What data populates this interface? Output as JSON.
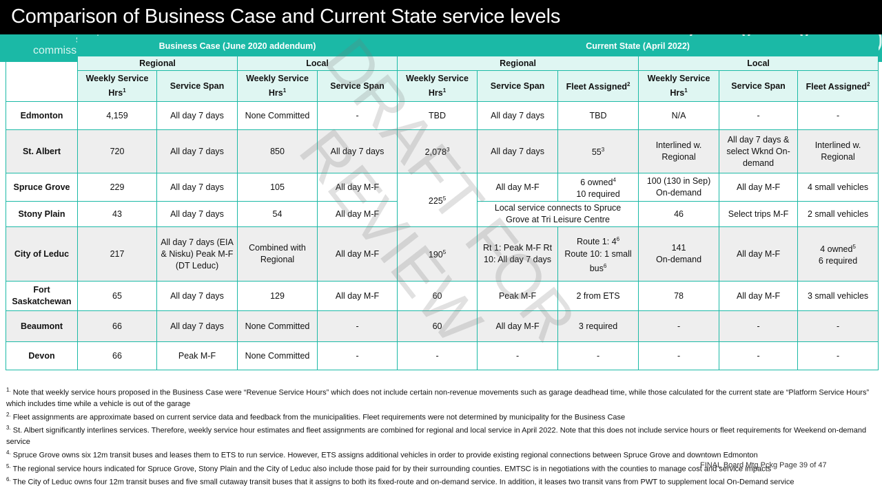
{
  "title": "Comparison of Business Case and Current State service levels",
  "logo": {
    "line1": "services",
    "line2": "commission"
  },
  "colors": {
    "accent": "#1bb9a6",
    "header_bg": "#000000",
    "light": "#dff6f2",
    "alt_row": "#eeeeee"
  },
  "groups": {
    "business_case": "Business Case (June 2020 addendum)",
    "current_state": "Current State (April 2022)"
  },
  "subgroups": {
    "regional": "Regional",
    "local": "Local"
  },
  "columns": {
    "weekly_hours": "Weekly Service Hrs",
    "span": "Service Span",
    "fleet": "Fleet Assigned",
    "sup1": "1",
    "sup2": "2"
  },
  "rows": [
    {
      "place": "Edmonton",
      "bc_reg_hrs": "4,159",
      "bc_reg_span": "All day 7 days",
      "bc_loc_hrs": "None Committed",
      "bc_loc_span": "-",
      "cs_reg_hrs": "TBD",
      "cs_reg_span": "All day 7 days",
      "cs_reg_fleet": "TBD",
      "cs_loc_hrs": "N/A",
      "cs_loc_span": "-",
      "cs_loc_fleet": "-"
    },
    {
      "place": "St. Albert",
      "bc_reg_hrs": "720",
      "bc_reg_span": "All day 7 days",
      "bc_loc_hrs": "850",
      "bc_loc_span": "All day 7 days",
      "cs_reg_hrs": "2,078",
      "cs_reg_hrs_sup": "3",
      "cs_reg_span": "All day 7 days",
      "cs_reg_fleet": "55",
      "cs_reg_fleet_sup": "3",
      "cs_loc_hrs": "Interlined w. Regional",
      "cs_loc_span": "All day 7 days & select Wknd On-demand",
      "cs_loc_fleet": "Interlined w. Regional"
    },
    {
      "place": "Spruce Grove",
      "bc_reg_hrs": "229",
      "bc_reg_span": "All day 7 days",
      "bc_loc_hrs": "105",
      "bc_loc_span": "All day M-F",
      "cs_reg_span": "All day M-F",
      "cs_reg_fleet_a": "6 owned",
      "cs_reg_fleet_a_sup": "4",
      "cs_reg_fleet_b": "10 required",
      "cs_loc_hrs_a": "100 (130 in Sep)",
      "cs_loc_hrs_b": "On-demand",
      "cs_loc_span": "All day M-F",
      "cs_loc_fleet": "4 small vehicles"
    },
    {
      "place": "Stony Plain",
      "bc_reg_hrs": "43",
      "bc_reg_span": "All day 7 days",
      "bc_loc_hrs": "54",
      "bc_loc_span": "All day M-F",
      "cs_reg_merged": "Local service connects to Spruce Grove at Tri Leisure Centre",
      "cs_loc_hrs": "46",
      "cs_loc_span": "Select trips M-F",
      "cs_loc_fleet": "2 small vehicles"
    },
    {
      "place": "City of Leduc",
      "bc_reg_hrs": "217",
      "bc_reg_span": "All day 7 days (EIA & Nisku) Peak M-F (DT Leduc)",
      "bc_loc_hrs": "Combined with Regional",
      "bc_loc_span": "All day M-F",
      "cs_reg_hrs": "190",
      "cs_reg_hrs_sup": "5",
      "cs_reg_span": "Rt 1: Peak M-F Rt 10: All day 7 days",
      "cs_reg_fleet_a": "Route 1: 4",
      "cs_reg_fleet_a_sup": "6",
      "cs_reg_fleet_b": "Route 10: 1 small bus",
      "cs_reg_fleet_b_sup": "6",
      "cs_loc_hrs_a": "141",
      "cs_loc_hrs_b": "On-demand",
      "cs_loc_span": "All day M-F",
      "cs_loc_fleet_a": "4 owned",
      "cs_loc_fleet_a_sup": "5",
      "cs_loc_fleet_b": "6 required"
    },
    {
      "place": "Fort Saskatchewan",
      "bc_reg_hrs": "65",
      "bc_reg_span": "All day 7 days",
      "bc_loc_hrs": "129",
      "bc_loc_span": "All day M-F",
      "cs_reg_hrs": "60",
      "cs_reg_span": "Peak M-F",
      "cs_reg_fleet": "2 from ETS",
      "cs_loc_hrs": "78",
      "cs_loc_span": "All day M-F",
      "cs_loc_fleet": "3 small vehicles"
    },
    {
      "place": "Beaumont",
      "bc_reg_hrs": "66",
      "bc_reg_span": "All day 7 days",
      "bc_loc_hrs": "None Committed",
      "bc_loc_span": "-",
      "cs_reg_hrs": "60",
      "cs_reg_span": "All day M-F",
      "cs_reg_fleet": "3 required",
      "cs_loc_hrs": "-",
      "cs_loc_span": "-",
      "cs_loc_fleet": "-"
    },
    {
      "place": "Devon",
      "bc_reg_hrs": "66",
      "bc_reg_span": "Peak M-F",
      "bc_loc_hrs": "None Committed",
      "bc_loc_span": "-",
      "cs_reg_hrs": "-",
      "cs_reg_span": "-",
      "cs_reg_fleet": "-",
      "cs_loc_hrs": "-",
      "cs_loc_span": "-",
      "cs_loc_fleet": "-"
    }
  ],
  "merged": {
    "spruce_stony_reg_hrs": "225",
    "spruce_stony_reg_hrs_sup": "5"
  },
  "watermark": {
    "line1": "DRAFT FOR",
    "line2": "REVIEW"
  },
  "notes": [
    {
      "sup": "1.",
      "text": " Note that weekly service hours proposed in the Business Case were “Revenue Service Hours” which does not include certain non-revenue movements such as garage deadhead time, while those calculated for the current state are “Platform Service Hours” which includes time while a vehicle is out of the garage"
    },
    {
      "sup": "2.",
      "text": " Fleet assignments are approximate based on current service data and feedback from the municipalities. Fleet requirements were not determined by municipality for the Business Case"
    },
    {
      "sup": "3.",
      "text": " St. Albert significantly interlines services. Therefore, weekly service hour estimates and fleet assignments are combined for regional and local service in April 2022.  Note that this does not include service hours or fleet requirements for Weekend on-demand service"
    },
    {
      "sup": "4.",
      "text": " Spruce Grove owns six 12m transit buses and leases them to ETS to run service. However, ETS assigns additional vehicles in order to provide existing regional connections between Spruce Grove and downtown Edmonton"
    },
    {
      "sup": "5.",
      "text": " The regional service hours indicated for Spruce Grove, Stony Plain and the City of Leduc also include those paid for by their surrounding counties. EMTSC is in negotiations with the counties to manage cost and service impacts"
    },
    {
      "sup": "6.",
      "text": " The City of Leduc owns four 12m transit buses and five small cutaway transit buses that it assigns to both its fixed-route and on-demand service. In addition, it leases two transit vans from PWT to supplement local On-Demand service"
    }
  ],
  "footer": "FINAL Board Mtg Pckg Page 39 of 47"
}
